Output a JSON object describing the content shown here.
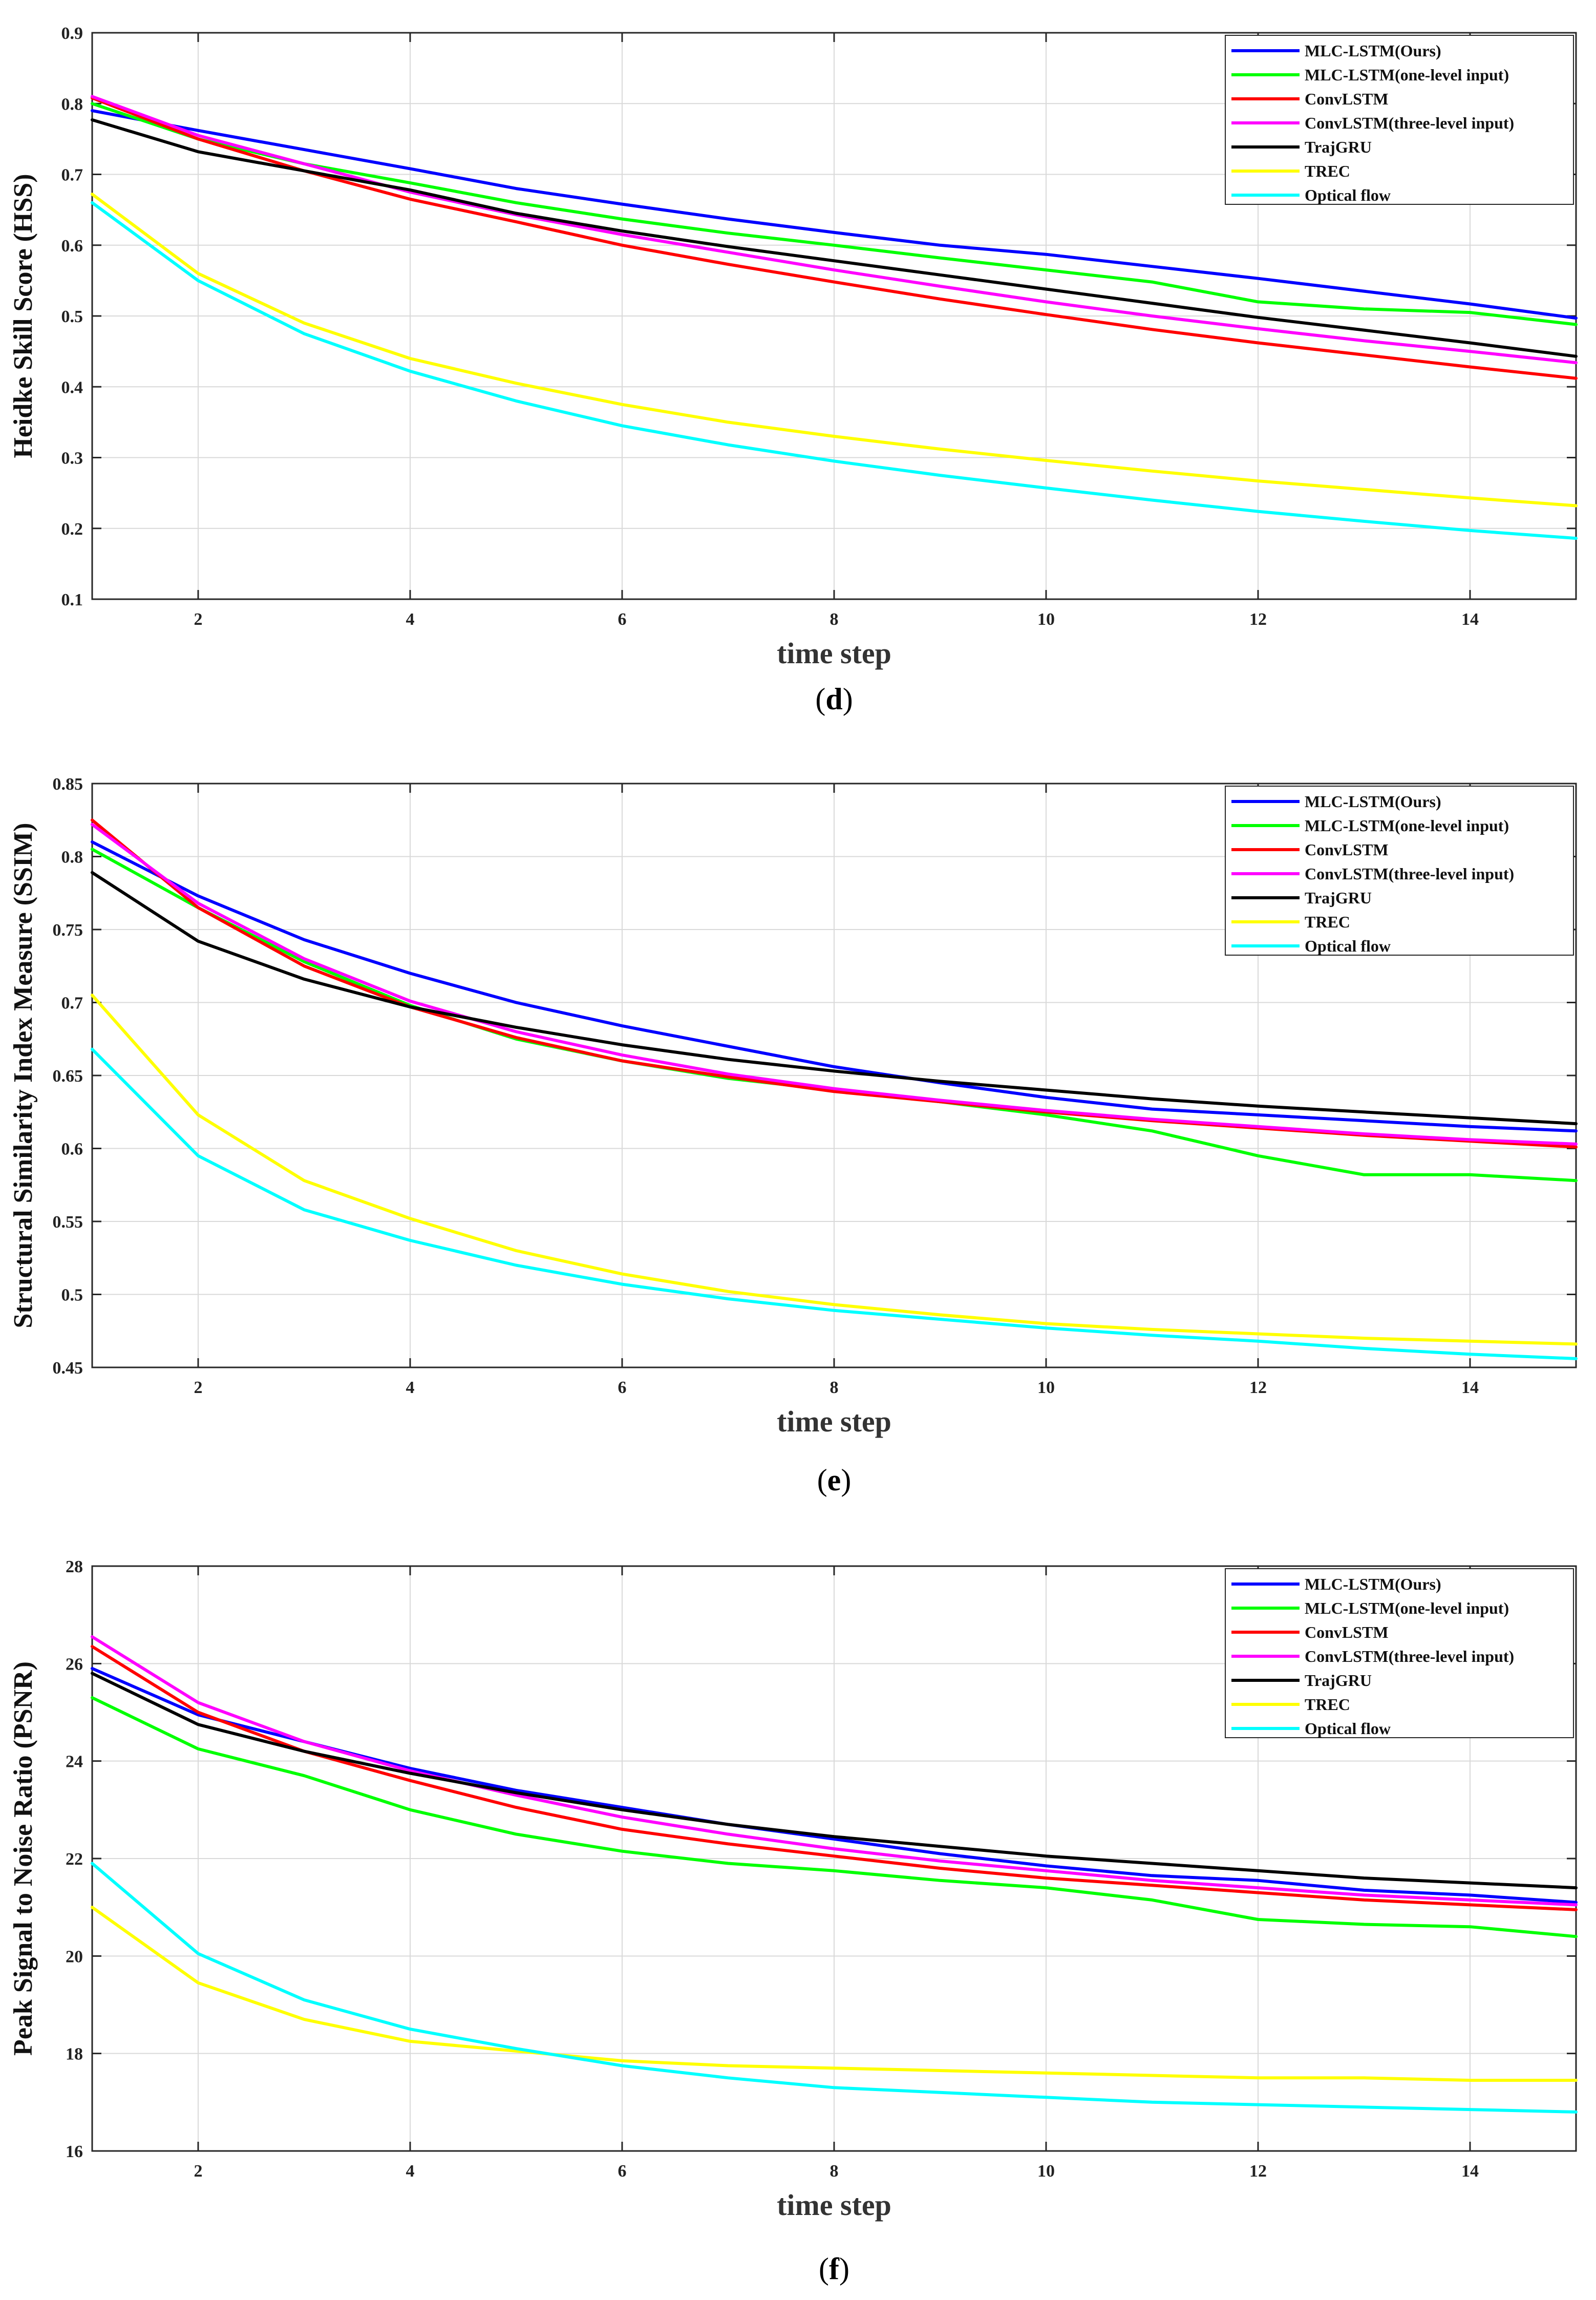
{
  "colors": {
    "blue": "#0000ff",
    "green": "#00ff00",
    "red": "#ff0000",
    "magenta": "#ff00ff",
    "black": "#000000",
    "yellow": "#ffff00",
    "cyan": "#00ffff",
    "grid": "#d9d9d9",
    "axis": "#262626"
  },
  "chart_data": [
    {
      "type": "line",
      "caption_letter": "d",
      "ylabel": "Heidke Skill Score (HSS)",
      "xlabel": "time step",
      "xlim": [
        1,
        15
      ],
      "ylim": [
        0.1,
        0.9
      ],
      "xticks": [
        2,
        4,
        6,
        8,
        10,
        12,
        14
      ],
      "yticks": [
        0.1,
        0.2,
        0.3,
        0.4,
        0.5,
        0.6,
        0.7,
        0.8,
        0.9
      ],
      "ytick_labels": [
        "0.1",
        "0.2",
        "0.3",
        "0.4",
        "0.5",
        "0.6",
        "0.7",
        "0.8",
        "0.9"
      ],
      "xtick_labels": [
        "2",
        "4",
        "6",
        "8",
        "10",
        "12",
        "14"
      ],
      "grid": true,
      "legend_position": "top-right",
      "x": [
        1,
        2,
        3,
        4,
        5,
        6,
        7,
        8,
        9,
        10,
        11,
        12,
        13,
        14,
        15
      ],
      "series": [
        {
          "name": "MLC-LSTM(Ours)",
          "color_key": "blue",
          "values": [
            0.79,
            0.762,
            0.735,
            0.708,
            0.68,
            0.658,
            0.637,
            0.618,
            0.6,
            0.587,
            0.57,
            0.553,
            0.535,
            0.517,
            0.497
          ]
        },
        {
          "name": "MLC-LSTM(one-level input)",
          "color_key": "green",
          "values": [
            0.8,
            0.75,
            0.715,
            0.688,
            0.66,
            0.637,
            0.617,
            0.6,
            0.582,
            0.565,
            0.548,
            0.52,
            0.51,
            0.505,
            0.488
          ]
        },
        {
          "name": "ConvLSTM",
          "color_key": "red",
          "values": [
            0.808,
            0.75,
            0.705,
            0.665,
            0.633,
            0.6,
            0.573,
            0.548,
            0.524,
            0.502,
            0.481,
            0.462,
            0.445,
            0.428,
            0.412
          ]
        },
        {
          "name": "ConvLSTM(three-level input)",
          "color_key": "magenta",
          "values": [
            0.81,
            0.755,
            0.715,
            0.675,
            0.643,
            0.615,
            0.59,
            0.565,
            0.542,
            0.52,
            0.5,
            0.482,
            0.465,
            0.45,
            0.434
          ]
        },
        {
          "name": "TrajGRU",
          "color_key": "black",
          "values": [
            0.777,
            0.732,
            0.705,
            0.678,
            0.645,
            0.62,
            0.598,
            0.578,
            0.558,
            0.538,
            0.518,
            0.498,
            0.48,
            0.462,
            0.443
          ]
        },
        {
          "name": "TREC",
          "color_key": "yellow",
          "values": [
            0.672,
            0.56,
            0.49,
            0.44,
            0.405,
            0.375,
            0.35,
            0.33,
            0.312,
            0.296,
            0.281,
            0.267,
            0.255,
            0.243,
            0.232
          ]
        },
        {
          "name": "Optical flow",
          "color_key": "cyan",
          "values": [
            0.66,
            0.55,
            0.475,
            0.422,
            0.38,
            0.345,
            0.318,
            0.295,
            0.275,
            0.257,
            0.24,
            0.224,
            0.21,
            0.197,
            0.186
          ]
        }
      ]
    },
    {
      "type": "line",
      "caption_letter": "e",
      "ylabel": "Structural Similarity Index Measure (SSIM)",
      "xlabel": "time step",
      "xlim": [
        1,
        15
      ],
      "ylim": [
        0.45,
        0.85
      ],
      "xticks": [
        2,
        4,
        6,
        8,
        10,
        12,
        14
      ],
      "yticks": [
        0.45,
        0.5,
        0.55,
        0.6,
        0.65,
        0.7,
        0.75,
        0.8,
        0.85
      ],
      "ytick_labels": [
        "0.45",
        "0.5",
        "0.55",
        "0.6",
        "0.65",
        "0.7",
        "0.75",
        "0.8",
        "0.85"
      ],
      "xtick_labels": [
        "2",
        "4",
        "6",
        "8",
        "10",
        "12",
        "14"
      ],
      "grid": true,
      "legend_position": "top-right",
      "x": [
        1,
        2,
        3,
        4,
        5,
        6,
        7,
        8,
        9,
        10,
        11,
        12,
        13,
        14,
        15
      ],
      "series": [
        {
          "name": "MLC-LSTM(Ours)",
          "color_key": "blue",
          "values": [
            0.81,
            0.773,
            0.743,
            0.72,
            0.7,
            0.684,
            0.67,
            0.656,
            0.645,
            0.635,
            0.627,
            0.623,
            0.619,
            0.615,
            0.612
          ]
        },
        {
          "name": "MLC-LSTM(one-level input)",
          "color_key": "green",
          "values": [
            0.805,
            0.765,
            0.728,
            0.698,
            0.675,
            0.66,
            0.648,
            0.64,
            0.632,
            0.623,
            0.612,
            0.595,
            0.582,
            0.582,
            0.578
          ]
        },
        {
          "name": "ConvLSTM",
          "color_key": "red",
          "values": [
            0.825,
            0.765,
            0.725,
            0.697,
            0.676,
            0.66,
            0.649,
            0.639,
            0.632,
            0.625,
            0.619,
            0.614,
            0.609,
            0.605,
            0.601
          ]
        },
        {
          "name": "ConvLSTM(three-level input)",
          "color_key": "magenta",
          "values": [
            0.822,
            0.768,
            0.73,
            0.701,
            0.68,
            0.664,
            0.651,
            0.641,
            0.633,
            0.626,
            0.62,
            0.615,
            0.61,
            0.606,
            0.603
          ]
        },
        {
          "name": "TrajGRU",
          "color_key": "black",
          "values": [
            0.789,
            0.742,
            0.716,
            0.697,
            0.683,
            0.671,
            0.661,
            0.653,
            0.646,
            0.64,
            0.634,
            0.629,
            0.625,
            0.621,
            0.617
          ]
        },
        {
          "name": "TREC",
          "color_key": "yellow",
          "values": [
            0.705,
            0.623,
            0.578,
            0.552,
            0.53,
            0.514,
            0.502,
            0.493,
            0.486,
            0.48,
            0.476,
            0.473,
            0.47,
            0.468,
            0.466
          ]
        },
        {
          "name": "Optical flow",
          "color_key": "cyan",
          "values": [
            0.668,
            0.595,
            0.558,
            0.537,
            0.52,
            0.507,
            0.497,
            0.489,
            0.483,
            0.477,
            0.472,
            0.468,
            0.463,
            0.459,
            0.456
          ]
        }
      ]
    },
    {
      "type": "line",
      "caption_letter": "f",
      "ylabel": "Peak Signal to Noise Ratio (PSNR)",
      "xlabel": "time step",
      "xlim": [
        1,
        15
      ],
      "ylim": [
        16,
        28
      ],
      "xticks": [
        2,
        4,
        6,
        8,
        10,
        12,
        14
      ],
      "yticks": [
        16,
        18,
        20,
        22,
        24,
        26,
        28
      ],
      "ytick_labels": [
        "16",
        "18",
        "20",
        "22",
        "24",
        "26",
        "28"
      ],
      "xtick_labels": [
        "2",
        "4",
        "6",
        "8",
        "10",
        "12",
        "14"
      ],
      "grid": true,
      "legend_position": "top-right",
      "x": [
        1,
        2,
        3,
        4,
        5,
        6,
        7,
        8,
        9,
        10,
        11,
        12,
        13,
        14,
        15
      ],
      "series": [
        {
          "name": "MLC-LSTM(Ours)",
          "color_key": "blue",
          "values": [
            25.9,
            24.95,
            24.4,
            23.85,
            23.4,
            23.05,
            22.7,
            22.4,
            22.1,
            21.85,
            21.65,
            21.55,
            21.35,
            21.25,
            21.1
          ]
        },
        {
          "name": "MLC-LSTM(one-level input)",
          "color_key": "green",
          "values": [
            25.3,
            24.25,
            23.7,
            23.0,
            22.5,
            22.15,
            21.9,
            21.75,
            21.55,
            21.4,
            21.15,
            20.75,
            20.65,
            20.6,
            20.4
          ]
        },
        {
          "name": "ConvLSTM",
          "color_key": "red",
          "values": [
            26.35,
            25.0,
            24.2,
            23.6,
            23.05,
            22.6,
            22.3,
            22.05,
            21.8,
            21.6,
            21.45,
            21.3,
            21.15,
            21.05,
            20.95
          ]
        },
        {
          "name": "ConvLSTM(three-level input)",
          "color_key": "magenta",
          "values": [
            26.55,
            25.2,
            24.4,
            23.8,
            23.3,
            22.85,
            22.5,
            22.2,
            21.95,
            21.75,
            21.55,
            21.4,
            21.25,
            21.15,
            21.05
          ]
        },
        {
          "name": "TrajGRU",
          "color_key": "black",
          "values": [
            25.8,
            24.75,
            24.2,
            23.75,
            23.35,
            23.0,
            22.7,
            22.45,
            22.25,
            22.05,
            21.9,
            21.75,
            21.6,
            21.5,
            21.4
          ]
        },
        {
          "name": "TREC",
          "color_key": "yellow",
          "values": [
            21.0,
            19.45,
            18.7,
            18.25,
            18.05,
            17.85,
            17.75,
            17.7,
            17.65,
            17.6,
            17.55,
            17.5,
            17.5,
            17.45,
            17.45
          ]
        },
        {
          "name": "Optical flow",
          "color_key": "cyan",
          "values": [
            21.9,
            20.05,
            19.1,
            18.5,
            18.1,
            17.75,
            17.5,
            17.3,
            17.2,
            17.1,
            17.0,
            16.95,
            16.9,
            16.85,
            16.8
          ]
        }
      ]
    }
  ]
}
